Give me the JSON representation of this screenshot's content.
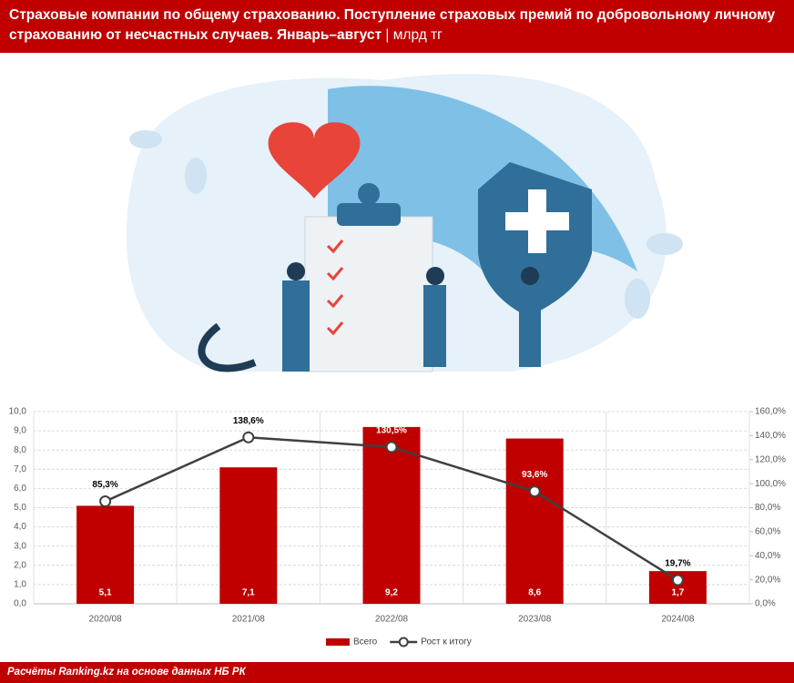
{
  "header": {
    "title": "Страховые компании по общему страхованию. Поступление страховых премий по добровольному личному страхованию от несчастных случаев. Январь–август",
    "unit": "| млрд тг"
  },
  "chart_data": {
    "type": "bar-line",
    "categories": [
      "2020/08",
      "2021/08",
      "2022/08",
      "2023/08",
      "2024/08"
    ],
    "series": [
      {
        "name": "Всего",
        "color": "#c00000",
        "values": [
          5.1,
          7.1,
          9.2,
          8.6,
          1.7
        ],
        "value_labels": [
          "5,1",
          "7,1",
          "9,2",
          "8,6",
          "1,7"
        ]
      },
      {
        "name": "Рост к итогу",
        "color": "#404040",
        "axis": "y2",
        "values": [
          85.3,
          138.6,
          130.5,
          93.6,
          19.7
        ],
        "value_labels": [
          "85,3%",
          "138,6%",
          "130,5%",
          "93,6%",
          "19,7%"
        ]
      }
    ],
    "ylim": [
      0,
      10
    ],
    "yticks": [
      {
        "value": 0,
        "label": "0,0"
      },
      {
        "value": 1,
        "label": "1,0"
      },
      {
        "value": 2,
        "label": "2,0"
      },
      {
        "value": 3,
        "label": "3,0"
      },
      {
        "value": 4,
        "label": "4,0"
      },
      {
        "value": 5,
        "label": "5,0"
      },
      {
        "value": 6,
        "label": "6,0"
      },
      {
        "value": 7,
        "label": "7,0"
      },
      {
        "value": 8,
        "label": "8,0"
      },
      {
        "value": 9,
        "label": "9,0"
      },
      {
        "value": 10,
        "label": "10,0"
      }
    ],
    "y2lim": [
      0,
      160
    ],
    "y2ticks": [
      {
        "value": 0,
        "label": "0,0%"
      },
      {
        "value": 20,
        "label": "20,0%"
      },
      {
        "value": 40,
        "label": "40,0%"
      },
      {
        "value": 60,
        "label": "60,0%"
      },
      {
        "value": 80,
        "label": "80,0%"
      },
      {
        "value": 100,
        "label": "100,0%"
      },
      {
        "value": 120,
        "label": "120,0%"
      },
      {
        "value": 140,
        "label": "140,0%"
      },
      {
        "value": 160,
        "label": "160,0%"
      }
    ],
    "grid": true,
    "legend": "bottom"
  },
  "footer": {
    "source": "Расчёты Ranking.kz на основе данных НБ РК"
  }
}
